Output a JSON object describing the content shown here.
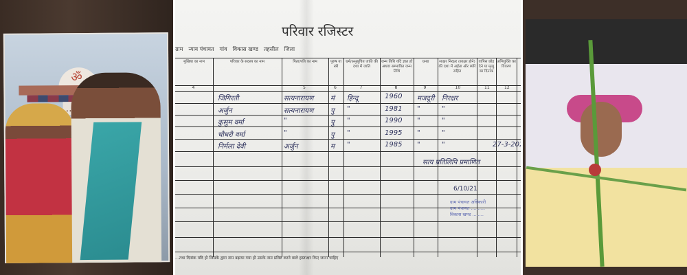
{
  "left_photo": {
    "sign_text": "...प माता",
    "symbol": "ॐ"
  },
  "document": {
    "title": "परिवार रजिस्टर",
    "meta": {
      "village_label": "ग्राम",
      "nyay_panchayat_label": "न्याय पंचायत",
      "gaon_label": "गांव",
      "vikas_khand_label": "विकास खण्ड",
      "tehsil_label": "तहसील",
      "jila_label": "जिला"
    },
    "headers": [
      {
        "num": "4",
        "label": "मुखिया का नाम"
      },
      {
        "num": "",
        "label": "परिवार के सदस्य का नाम"
      },
      {
        "num": "5",
        "label": "पिता/पति का नाम"
      },
      {
        "num": "6",
        "label": "पुरुष या स्त्री"
      },
      {
        "num": "7",
        "label": "धर्म/अनुसूचित जाति की दशा में जाति"
      },
      {
        "num": "8",
        "label": "जन्म तिथि यदि ज्ञात हो अथवा सम्भावित जन्म तिथि"
      },
      {
        "num": "9",
        "label": "धन्धा"
      },
      {
        "num": "10",
        "label": "साक्षर निरक्षर (साक्षर होने) की दशा में अर्हता और ब्यौरे सहित"
      },
      {
        "num": "11",
        "label": "वापिस छोड़ देने या मृत्यु का दिनांक"
      },
      {
        "num": "12",
        "label": "अभियुक्ति का विवरण"
      }
    ],
    "rows": [
      {
        "name": "जिगिरती",
        "father": "सत्यनारायण",
        "sex": "मं",
        "religion": "हिन्दू",
        "dob": "1960",
        "occupation": "मजदूरी",
        "literacy": "निरक्षर",
        "left_date": ""
      },
      {
        "name": "अर्जुन",
        "father": "सत्यनारायण",
        "sex": "पु",
        "religion": "\"",
        "dob": "1981",
        "occupation": "\"",
        "literacy": "\"",
        "left_date": ""
      },
      {
        "name": "कुसुम वर्मा",
        "father": "\"",
        "sex": "पु",
        "religion": "\"",
        "dob": "1990",
        "occupation": "\"",
        "literacy": "\"",
        "left_date": ""
      },
      {
        "name": "चौधरी वर्मा",
        "father": "\"",
        "sex": "पु",
        "religion": "\"",
        "dob": "1995",
        "occupation": "\"",
        "literacy": "\"",
        "left_date": ""
      },
      {
        "name": "निर्मला देवी",
        "father": "अर्जुन",
        "sex": "म",
        "religion": "\"",
        "dob": "1985",
        "occupation": "\"",
        "literacy": "\"",
        "left_date": "27-3-2020"
      }
    ],
    "certification": "सत्य प्रतिलिपि प्रमाणित",
    "sign_date": "6/10/21",
    "stamp_lines": [
      "ग्राम पंचायत अधिकारी",
      "ग्राम पंचायत ..........",
      "विकास खण्ड ........"
    ],
    "footer": "...तथा दिनांक यदि हो जिसके द्वारा नाम बढ़ाया गया हो उसके नाम प्रविष्ट करने वाले हस्ताक्षर किए जाना चाहिए"
  }
}
